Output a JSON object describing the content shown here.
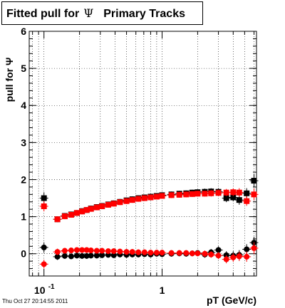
{
  "title": {
    "prefix": "Fitted pull for",
    "symbol": "Ψ",
    "suffix": "Primary Tracks"
  },
  "footer_text": "Thu Oct 27 20:14:55 2011",
  "chart_data": {
    "type": "scatter",
    "ylabel": "pull for Ψ",
    "xlabel": "pT (GeV/c)",
    "xscale": "log",
    "xlim": [
      0.075,
      6.3
    ],
    "ylim": [
      -0.6,
      6.0
    ],
    "y_ticks": [
      "0",
      "1",
      "2",
      "3",
      "4",
      "5",
      "6"
    ],
    "x_tick_labels": [
      {
        "value": 0.1,
        "label": "10",
        "exp": "-1"
      },
      {
        "value": 1,
        "label": "1",
        "exp": ""
      }
    ],
    "grid": true,
    "colors": {
      "black_series": "#000000",
      "red_series": "#ff0000"
    },
    "series": [
      {
        "color": "#000000",
        "marker": "square",
        "x": [
          0.1,
          0.13,
          0.15,
          0.17,
          0.19,
          0.21,
          0.23,
          0.25,
          0.28,
          0.31,
          0.35,
          0.39,
          0.44,
          0.5,
          0.56,
          0.63,
          0.71,
          0.8,
          0.9,
          1.0,
          1.2,
          1.4,
          1.6,
          1.8,
          2.0,
          2.3,
          2.6,
          3.0,
          3.5,
          4.0,
          4.5,
          5.2,
          6.0
        ],
        "y": [
          1.5,
          0.93,
          1.02,
          1.06,
          1.1,
          1.15,
          1.18,
          1.22,
          1.26,
          1.29,
          1.33,
          1.36,
          1.4,
          1.44,
          1.47,
          1.5,
          1.52,
          1.54,
          1.56,
          1.58,
          1.6,
          1.62,
          1.63,
          1.65,
          1.66,
          1.67,
          1.68,
          1.67,
          1.5,
          1.52,
          1.45,
          1.63,
          1.97
        ],
        "yerr": [
          0.1,
          0.02,
          0.02,
          0.02,
          0.02,
          0.02,
          0.02,
          0.02,
          0.02,
          0.02,
          0.02,
          0.02,
          0.02,
          0.02,
          0.02,
          0.02,
          0.02,
          0.02,
          0.02,
          0.02,
          0.02,
          0.02,
          0.02,
          0.02,
          0.02,
          0.03,
          0.03,
          0.04,
          0.05,
          0.05,
          0.07,
          0.08,
          0.12
        ]
      },
      {
        "color": "#ff0000",
        "marker": "square",
        "x": [
          0.1,
          0.13,
          0.15,
          0.17,
          0.19,
          0.21,
          0.23,
          0.25,
          0.28,
          0.31,
          0.35,
          0.39,
          0.44,
          0.5,
          0.56,
          0.63,
          0.71,
          0.8,
          0.9,
          1.0,
          1.2,
          1.4,
          1.6,
          1.8,
          2.0,
          2.3,
          2.6,
          3.0,
          3.5,
          4.0,
          4.5,
          5.2,
          6.0
        ],
        "y": [
          1.28,
          0.93,
          1.01,
          1.05,
          1.1,
          1.14,
          1.18,
          1.21,
          1.25,
          1.28,
          1.32,
          1.35,
          1.39,
          1.42,
          1.45,
          1.48,
          1.5,
          1.52,
          1.54,
          1.56,
          1.58,
          1.59,
          1.6,
          1.61,
          1.62,
          1.62,
          1.63,
          1.64,
          1.65,
          1.66,
          1.65,
          1.42,
          1.6
        ],
        "yerr": [
          0.08,
          0.02,
          0.02,
          0.02,
          0.02,
          0.02,
          0.02,
          0.02,
          0.02,
          0.02,
          0.02,
          0.02,
          0.02,
          0.02,
          0.02,
          0.02,
          0.02,
          0.02,
          0.02,
          0.02,
          0.02,
          0.02,
          0.02,
          0.02,
          0.02,
          0.02,
          0.03,
          0.03,
          0.04,
          0.05,
          0.06,
          0.07,
          0.1
        ]
      },
      {
        "color": "#000000",
        "marker": "circle",
        "x": [
          0.1,
          0.13,
          0.15,
          0.17,
          0.19,
          0.21,
          0.23,
          0.25,
          0.28,
          0.31,
          0.35,
          0.39,
          0.44,
          0.5,
          0.56,
          0.63,
          0.71,
          0.8,
          0.9,
          1.0,
          1.2,
          1.4,
          1.6,
          1.8,
          2.0,
          2.3,
          2.6,
          3.0,
          3.5,
          4.0,
          4.5,
          5.2,
          6.0
        ],
        "y": [
          0.17,
          -0.08,
          -0.06,
          -0.07,
          -0.05,
          -0.06,
          -0.06,
          -0.05,
          -0.05,
          -0.04,
          -0.03,
          -0.04,
          -0.02,
          -0.03,
          -0.02,
          -0.02,
          -0.01,
          -0.02,
          0.0,
          -0.01,
          0.0,
          0.01,
          0.0,
          0.01,
          0.02,
          -0.02,
          0.04,
          0.1,
          -0.04,
          -0.05,
          -0.03,
          0.12,
          0.3
        ],
        "yerr": [
          0.08,
          0.03,
          0.02,
          0.02,
          0.02,
          0.02,
          0.02,
          0.02,
          0.02,
          0.02,
          0.02,
          0.02,
          0.02,
          0.02,
          0.02,
          0.02,
          0.02,
          0.02,
          0.02,
          0.02,
          0.02,
          0.02,
          0.02,
          0.02,
          0.02,
          0.03,
          0.03,
          0.04,
          0.05,
          0.06,
          0.07,
          0.08,
          0.1
        ]
      },
      {
        "color": "#ff0000",
        "marker": "circle",
        "x": [
          0.1,
          0.13,
          0.15,
          0.17,
          0.19,
          0.21,
          0.23,
          0.25,
          0.28,
          0.31,
          0.35,
          0.39,
          0.44,
          0.5,
          0.56,
          0.63,
          0.71,
          0.8,
          0.9,
          1.0,
          1.2,
          1.4,
          1.6,
          1.8,
          2.0,
          2.3,
          2.6,
          3.0,
          3.5,
          4.0,
          4.5,
          5.2,
          6.0
        ],
        "y": [
          -0.28,
          0.05,
          0.08,
          0.09,
          0.1,
          0.1,
          0.1,
          0.09,
          0.08,
          0.08,
          0.07,
          0.07,
          0.06,
          0.05,
          0.05,
          0.04,
          0.04,
          0.03,
          0.03,
          0.03,
          0.02,
          0.02,
          0.02,
          0.01,
          0.01,
          0.0,
          -0.02,
          -0.05,
          -0.15,
          -0.1,
          -0.07,
          -0.08,
          0.15
        ],
        "yerr": [
          0.06,
          0.03,
          0.02,
          0.02,
          0.02,
          0.02,
          0.02,
          0.02,
          0.02,
          0.02,
          0.02,
          0.02,
          0.02,
          0.02,
          0.02,
          0.02,
          0.02,
          0.02,
          0.02,
          0.02,
          0.02,
          0.02,
          0.02,
          0.02,
          0.02,
          0.03,
          0.03,
          0.04,
          0.05,
          0.06,
          0.07,
          0.08,
          0.1
        ]
      }
    ]
  }
}
